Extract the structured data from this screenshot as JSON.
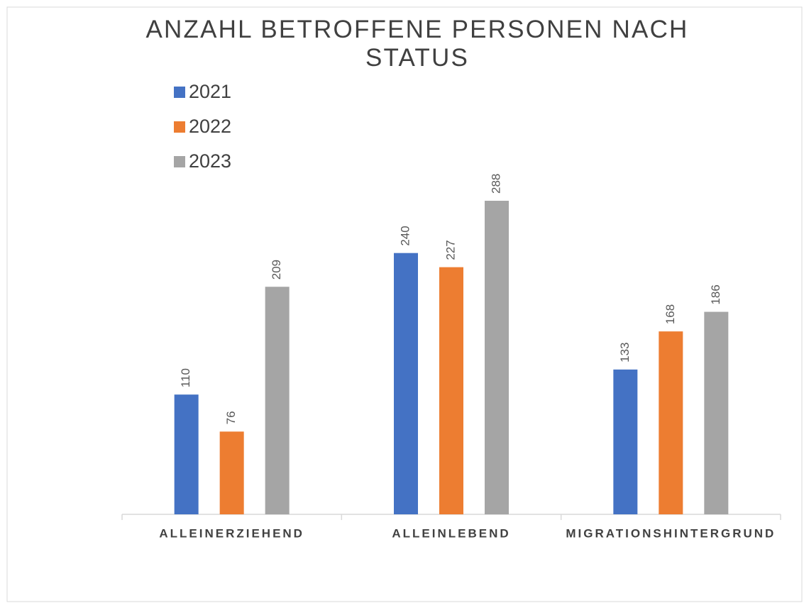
{
  "chart_data": {
    "type": "bar",
    "title": "ANZAHL BETROFFENE PERSONEN NACH STATUS",
    "categories": [
      "ALLEINERZIEHEND",
      "ALLEINLEBEND",
      "MIGRATIONSHINTERGRUND"
    ],
    "series": [
      {
        "name": "2021",
        "color": "#4472c4",
        "values": [
          110,
          240,
          133
        ]
      },
      {
        "name": "2022",
        "color": "#ed7d31",
        "values": [
          76,
          227,
          168
        ]
      },
      {
        "name": "2023",
        "color": "#a5a5a5",
        "values": [
          209,
          288,
          186
        ]
      }
    ],
    "legend": "top-left"
  }
}
